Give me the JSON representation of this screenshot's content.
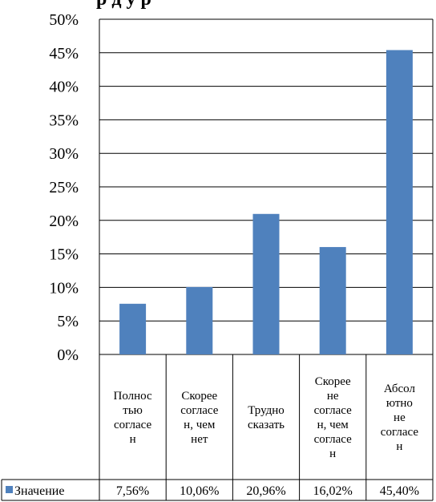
{
  "chart_data": {
    "type": "bar",
    "title": "",
    "title_visible_fragment": "р д    у р",
    "categories": [
      "Полностью согласен",
      "Скорее согласен, чем нет",
      "Трудно сказать",
      "Скорее не согласен, чем согласен",
      "Абсолютно не согласен"
    ],
    "category_lines": [
      [
        "Полнос",
        "тью",
        "согласе",
        "н"
      ],
      [
        "Скорее",
        "согласе",
        "н, чем",
        "нет"
      ],
      [
        "Трудно",
        "сказать"
      ],
      [
        "Скорее",
        "не",
        "согласе",
        "н, чем",
        "согласе",
        "н"
      ],
      [
        "Абсол",
        "ютно",
        "не",
        "согласе",
        "н"
      ]
    ],
    "series": [
      {
        "name": "Значение",
        "color": "#4f81bd",
        "values": [
          7.56,
          10.06,
          20.96,
          16.02,
          45.4
        ],
        "value_labels": [
          "7,56%",
          "10,06%",
          "20,96%",
          "16,02%",
          "45,40%"
        ]
      }
    ],
    "y_ticks": [
      "0%",
      "5%",
      "10%",
      "15%",
      "20%",
      "25%",
      "30%",
      "35%",
      "40%",
      "45%",
      "50%"
    ],
    "ylim": [
      0,
      50
    ],
    "grid": true,
    "legend": "data-table-left"
  }
}
